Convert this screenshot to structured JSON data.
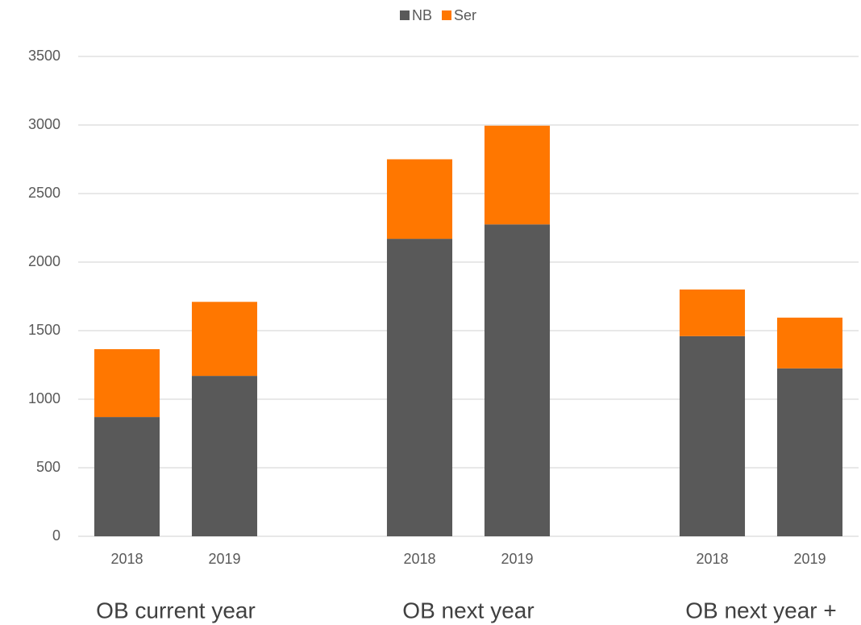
{
  "chart_data": {
    "type": "stacked_bar",
    "categories": [
      "2018",
      "2019",
      null,
      "2018",
      "2019",
      null,
      "2018",
      "2019"
    ],
    "groups": [
      "OB current year",
      "OB next year",
      "OB next year +"
    ],
    "series": [
      {
        "name": "NB",
        "color": "#595959",
        "values": [
          870,
          1170,
          null,
          2170,
          2275,
          null,
          1460,
          1225
        ]
      },
      {
        "name": "Ser",
        "color": "#ff7700",
        "values": [
          495,
          540,
          null,
          580,
          720,
          null,
          340,
          370
        ]
      }
    ],
    "ylim": [
      0,
      3500
    ],
    "yticks": [
      0,
      500,
      1000,
      1500,
      2000,
      2500,
      3000,
      3500
    ],
    "grid": true,
    "legend": "top"
  }
}
